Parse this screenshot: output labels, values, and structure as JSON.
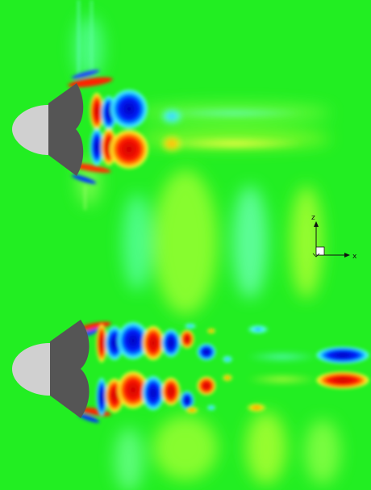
{
  "image": {
    "background_color": "#22ee22",
    "body_light_color": "#d0d0d0",
    "body_dark_color": "#555555",
    "contour_colors": {
      "positive_high": "#ee0000",
      "positive_mid": "#ffaa00",
      "positive_low": "#ffff44",
      "negative_low": "#66ffff",
      "negative_mid": "#00aaff",
      "negative_high": "#0000cc"
    }
  },
  "axes_triad": {
    "z_label": "z",
    "x_label": "x"
  }
}
